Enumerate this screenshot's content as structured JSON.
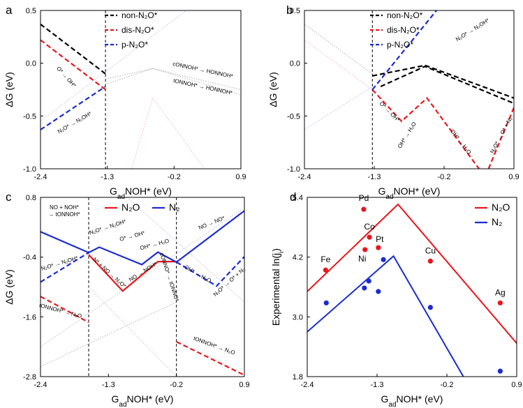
{
  "chart_data": [
    {
      "type": "line",
      "panel": "a",
      "ylabel": "ΔG (eV)",
      "xlabel": [
        "G",
        "ad",
        "NOH* (eV)"
      ],
      "xlim": [
        -2.4,
        0.9
      ],
      "xticks": [
        -2.4,
        -1.3,
        -0.2,
        0.9
      ],
      "ylim": [
        -1.0,
        0.5
      ],
      "yticks": [
        {
          "value": -1.0,
          "label": "-1.0"
        },
        -0.5,
        {
          "value": 0.0,
          "label": "0.0"
        },
        0.5
      ],
      "vlines": [
        -1.33
      ],
      "series": [
        {
          "color": "#bbbbbb",
          "dash": "dotted",
          "x": [
            -1.33,
            -0.55,
            0.9
          ],
          "values": [
            -0.15,
            -0.05,
            -0.25
          ]
        },
        {
          "color": "#bbbbbb",
          "dash": "dotted",
          "x": [
            -1.33,
            -0.55,
            0.9
          ],
          "values": [
            -0.2,
            -0.05,
            -0.3
          ]
        },
        {
          "color": "#f0c0c8",
          "dash": "dotted",
          "x": [
            -0.9,
            -0.55,
            0.3
          ],
          "values": [
            -1.0,
            -0.33,
            -1.0
          ]
        },
        {
          "color": "#c9c9e6",
          "dash": "dotted",
          "x": [
            -2.4,
            0.0
          ],
          "values": [
            -0.55,
            0.5
          ]
        },
        {
          "name": "non-N₂O*",
          "color": "#000000",
          "dash": "dashed",
          "x": [
            -2.4,
            -1.33
          ],
          "values": [
            0.37,
            -0.1
          ]
        },
        {
          "name": "dis-N₂O*",
          "color": "#e8161b",
          "dash": "dashed",
          "x": [
            -2.4,
            -1.33
          ],
          "values": [
            0.22,
            -0.25
          ]
        },
        {
          "name": "p-N₂O*",
          "color": "#1a2bd0",
          "dash": "dashed",
          "x": [
            -2.4,
            -1.33
          ],
          "values": [
            -0.63,
            -0.22
          ]
        }
      ],
      "annotations": [
        {
          "text": "O* → OH*",
          "color": "#000000"
        },
        {
          "text": "N₂O* → N₂OH*",
          "color": "#000000"
        },
        {
          "text": "cONNOH* → HONNOH*",
          "color": "#000000"
        },
        {
          "text": "tONNOH* → HONNOH*",
          "color": "#000000"
        }
      ]
    },
    {
      "type": "line",
      "panel": "b",
      "ylabel": "ΔG (eV)",
      "xlabel": [
        "G",
        "ad",
        "NOH* (eV)"
      ],
      "xlim": [
        -2.4,
        0.9
      ],
      "xticks": [
        -2.4,
        -1.3,
        -0.2,
        0.9
      ],
      "ylim": [
        -1.0,
        0.5
      ],
      "yticks": [
        {
          "value": -1.0,
          "label": "-1.0"
        },
        -0.5,
        {
          "value": 0.0,
          "label": "0.0"
        },
        0.5
      ],
      "vlines": [
        -1.33
      ],
      "series": [
        {
          "color": "#bbbbbb",
          "dash": "dotted",
          "x": [
            -2.4,
            -1.33
          ],
          "values": [
            0.37,
            -0.1
          ]
        },
        {
          "color": "#f0c0c8",
          "dash": "dotted",
          "x": [
            -2.4,
            -1.33
          ],
          "values": [
            0.22,
            -0.25
          ]
        },
        {
          "color": "#c9c9e6",
          "dash": "dotted",
          "x": [
            -2.4,
            -1.33
          ],
          "values": [
            -0.63,
            -0.22
          ]
        },
        {
          "name": "non-N₂O*",
          "color": "#000000",
          "dash": "dashed",
          "x": [
            -1.33,
            -0.5,
            0.9,
            null,
            -1.2,
            -0.5,
            0.9
          ],
          "values": [
            -0.12,
            -0.02,
            -0.33,
            null,
            -0.22,
            -0.03,
            -0.38
          ]
        },
        {
          "name": "dis-N₂O*",
          "color": "#e8161b",
          "dash": "dashed",
          "x": [
            -1.33,
            -0.87,
            -0.47,
            0.35,
            null,
            0.5,
            0.9
          ],
          "values": [
            -0.25,
            -0.55,
            -0.33,
            -1.0,
            null,
            -1.0,
            -0.42
          ]
        },
        {
          "name": "p-N₂O*",
          "color": "#1a2bd0",
          "dash": "dashed",
          "x": [
            -1.33,
            -0.32
          ],
          "values": [
            -0.25,
            0.5
          ]
        }
      ],
      "annotations": [
        {
          "text": "O* → OH*",
          "color": "#000000"
        },
        {
          "text": "OH* → H₂O",
          "color": "#000000"
        },
        {
          "text": "OH* → H₂O",
          "color": "#000000"
        },
        {
          "text": "N₂O* → O* + N₂",
          "color": "#000000"
        },
        {
          "text": "N₂O* → N₂OH*",
          "color": "#000000"
        }
      ]
    },
    {
      "type": "line",
      "panel": "c",
      "ylabel": "ΔG (eV)",
      "xlabel": [
        "G",
        "ad",
        "NOH* (eV)"
      ],
      "xlim": [
        -2.4,
        0.9
      ],
      "xticks": [
        -2.4,
        -1.3,
        -0.2,
        0.9
      ],
      "ylim": [
        -2.8,
        0.8
      ],
      "yticks": [
        -2.8,
        -1.6,
        -0.4,
        0.8
      ],
      "vlines": [
        -1.62,
        -0.2
      ],
      "series": [
        {
          "color": "#c9c9e6",
          "dash": "dotted",
          "x": [
            -2.4,
            0.9
          ],
          "values": [
            -2.2,
            0.6
          ]
        },
        {
          "color": "#c9c9e6",
          "dash": "dotted",
          "x": [
            -1.0,
            0.9
          ],
          "values": [
            0.8,
            -1.3
          ]
        },
        {
          "color": "#f0c0c8",
          "dash": "dotted",
          "x": [
            -1.62,
            -0.2
          ],
          "values": [
            -1.0,
            -2.8
          ]
        },
        {
          "color": "#bbbbbb",
          "dash": "dotted",
          "x": [
            -2.4,
            -0.2
          ],
          "values": [
            -2.6,
            -1.3
          ]
        },
        {
          "name": "N₂O",
          "color": "#e8161b",
          "dash": "solid",
          "x": [
            -1.62,
            -1.07,
            -0.5,
            -0.2
          ],
          "values": [
            -0.35,
            -1.08,
            -0.49,
            -0.49
          ]
        },
        {
          "name": "N₂",
          "color": "#1a2bd0",
          "dash": "solid",
          "x": [
            -2.4,
            -1.62,
            -1.45,
            -0.76,
            -0.5,
            -0.2,
            0.9
          ],
          "values": [
            0.11,
            -0.31,
            -0.2,
            -0.55,
            -0.3,
            -0.5,
            0.53
          ]
        },
        {
          "color": "#1a2bd0",
          "dash": "dashed",
          "x": [
            -2.4,
            -1.62,
            null,
            -0.2,
            0.45,
            0.9
          ],
          "values": [
            -0.9,
            -0.31,
            null,
            -0.5,
            -0.98,
            -0.39
          ]
        },
        {
          "color": "#e8161b",
          "dash": "dashed",
          "x": [
            -2.4,
            -1.62,
            null,
            -0.2,
            0.9
          ],
          "values": [
            -1.19,
            -1.71,
            null,
            -2.1,
            -2.77
          ]
        }
      ],
      "annotations": [
        {
          "text": "NO + NOH*",
          "color": "#000000"
        },
        {
          "text": "→ tONNOH*",
          "color": "#000000"
        },
        {
          "text": "N₂O* → N₂OH*",
          "color": "#1a2bd0"
        },
        {
          "text": "O* → OH*",
          "color": "#1a2bd0"
        },
        {
          "text": "OH* → H₂O",
          "color": "#1a2bd0"
        },
        {
          "text": "NO → NO*",
          "color": "#1a2bd0"
        },
        {
          "text": "OH* → H₂O",
          "color": "#1a2bd0"
        },
        {
          "text": "N₂O* → O* + N₂",
          "color": "#1a2bd0"
        },
        {
          "text": "N₂O* → N₂OH*",
          "color": "#1a2bd0"
        },
        {
          "text": "N* + NO → N₂O*",
          "color": "#e8161b"
        },
        {
          "text": "NO → NOH*",
          "color": "#e8161b"
        },
        {
          "text": "cONNO* → tONNO*",
          "color": "#e8161b"
        },
        {
          "text": "tONNOH* → N₂O",
          "color": "#e8161b"
        },
        {
          "text": "tONNOH* → N₂O",
          "color": "#e8161b"
        }
      ]
    },
    {
      "type": "scatter",
      "panel": "d",
      "ylabel": [
        "Experimental ln(j",
        "i",
        ")"
      ],
      "xlabel": [
        "G",
        "ad",
        "NOH* (eV)"
      ],
      "xlim": [
        -2.4,
        0.9
      ],
      "xticks": [
        -2.4,
        -1.3,
        -0.2,
        0.9
      ],
      "ylim": [
        1.8,
        5.4
      ],
      "yticks": [
        1.8,
        {
          "value": 3.0,
          "label": "3.0"
        },
        4.2,
        5.4
      ],
      "series": [
        {
          "name": "N₂O",
          "color": "#e8161b",
          "x": [
            -2.11,
            -1.51,
            -1.42,
            -1.49,
            -1.28,
            -0.46,
            0.64
          ],
          "values": [
            3.94,
            5.16,
            4.6,
            4.35,
            4.39,
            4.12,
            3.28
          ],
          "labels": [
            "Fe",
            "Pd",
            "Co",
            "Ni",
            "Pt",
            "Cu",
            "Ag"
          ],
          "fit_x": [
            -2.4,
            -0.97,
            0.9
          ],
          "fit_values": [
            3.51,
            5.26,
            2.47
          ]
        },
        {
          "name": "N₂",
          "color": "#1a2bd0",
          "x": [
            -2.1,
            -1.5,
            -1.43,
            -1.28,
            -1.2,
            -0.46,
            0.64
          ],
          "values": [
            3.28,
            3.58,
            3.72,
            3.51,
            4.15,
            3.19,
            1.91
          ],
          "fit_x": [
            -2.4,
            -1.04,
            0.06
          ],
          "fit_values": [
            2.7,
            4.22,
            1.8
          ]
        }
      ]
    }
  ]
}
